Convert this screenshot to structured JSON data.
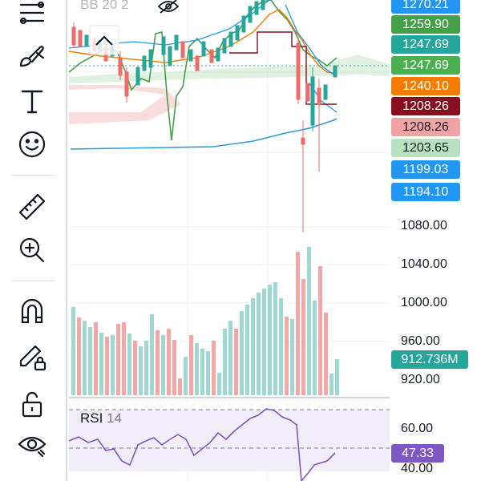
{
  "toolbar": {
    "items": [
      {
        "icon": "fib-retracement-icon"
      },
      {
        "icon": "brush-icon"
      },
      {
        "icon": "text-icon"
      },
      {
        "icon": "smiley-icon"
      },
      {
        "icon": "ruler-icon"
      },
      {
        "icon": "zoom-in-icon"
      },
      {
        "icon": "magnet-icon"
      },
      {
        "icon": "lock-pencil-icon"
      },
      {
        "icon": "unlock-icon"
      },
      {
        "icon": "eye-icon"
      }
    ]
  },
  "chart": {
    "indicator_legend": "BB 20 2"
  },
  "price_badges": [
    {
      "text": "1270.21",
      "color": "#2196f3"
    },
    {
      "text": "1259.90",
      "color": "#43a047"
    },
    {
      "text": "1247.69",
      "color": "#26a69a"
    },
    {
      "text": "1247.69",
      "color": "#4caf50"
    },
    {
      "text": "1240.10",
      "color": "#f57c00"
    },
    {
      "text": "1208.26",
      "color": "#880e1f"
    },
    {
      "text": "1208.26",
      "color": "#f1a3a3"
    },
    {
      "text": "1203.65",
      "color": "#b7e1c0"
    },
    {
      "text": "1199.03",
      "color": "#2196f3"
    },
    {
      "text": "1194.10",
      "color": "#2196f3"
    }
  ],
  "volume_axis": {
    "ticks": [
      "1080.00",
      "1040.00",
      "1000.00",
      "960.00",
      "920.00"
    ],
    "current": "912.736M",
    "current_color": "#26a69a"
  },
  "rsi": {
    "label": "RSI",
    "period": "14",
    "ticks": [
      "60.00",
      "40.00"
    ],
    "current": "47.33",
    "current_color": "#7e57c2"
  }
}
